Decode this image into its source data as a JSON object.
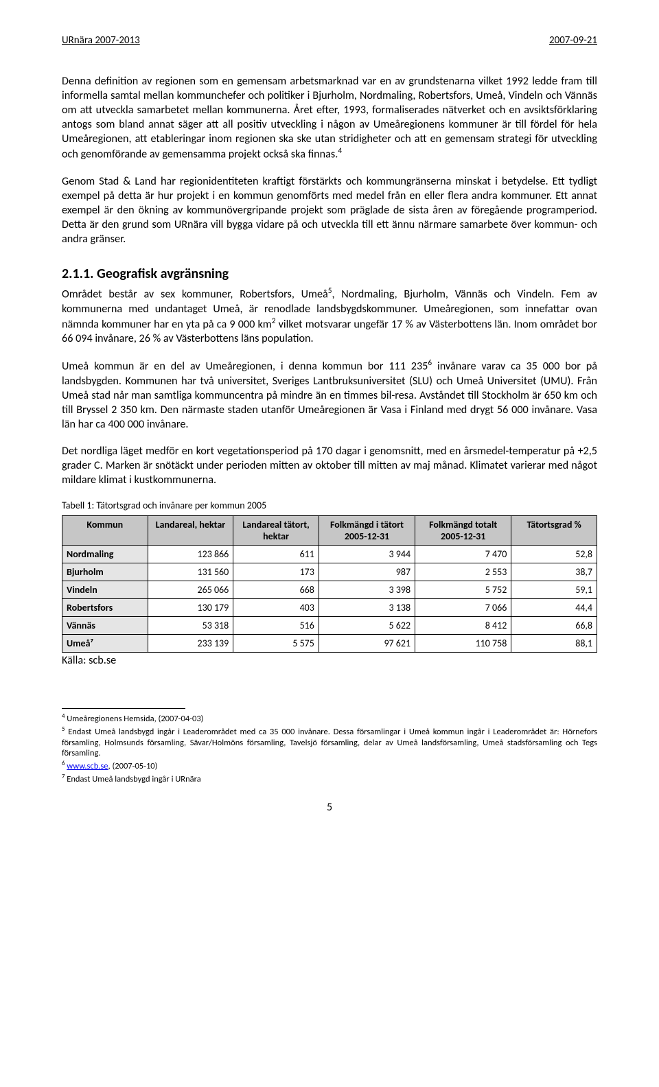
{
  "header": {
    "left": "URnära 2007-2013",
    "right": "2007-09-21"
  },
  "p1": "Denna definition av regionen som en gemensam arbetsmarknad var en av grundstenarna vilket 1992 ledde fram till informella samtal mellan kommunchefer och politiker i Bjurholm, Nordmaling, Robertsfors, Umeå, Vindeln och Vännäs om att utveckla samarbetet mellan kommunerna. Året efter, 1993, formaliserades nätverket och en avsiktsförklaring antogs som bland annat säger att all positiv utveckling i någon av Umeåregionens kommuner är till fördel för hela Umeåregionen, att etableringar inom regionen ska ske utan stridigheter och att en gemensam strategi för utveckling och genomförande av gemensamma projekt också ska finnas.",
  "p1_sup": "4",
  "p2": "Genom Stad & Land har regionidentiteten kraftigt förstärkts och kommungränserna minskat i betydelse. Ett tydligt exempel på detta är hur projekt i en kommun genomförts med medel från en eller flera andra kommuner. Ett annat exempel är den ökning av kommunövergripande projekt som präglade de sista åren av föregående programperiod. Detta är den grund som URnära vill bygga vidare på och utveckla till ett ännu närmare samarbete över kommun- och andra gränser.",
  "section_heading": "2.1.1. Geografisk avgränsning",
  "p3_a": "Området består av sex kommuner, Robertsfors, Umeå",
  "p3_sup1": "5",
  "p3_b": ", Nordmaling, Bjurholm, Vännäs och Vindeln. Fem av kommunerna med undantaget Umeå, är renodlade landsbygdskommuner. Umeåregionen, som innefattar ovan nämnda kommuner har en yta på ca 9 000 km",
  "p3_sup2": "2",
  "p3_c": " vilket motsvarar ungefär 17 % av Västerbottens län. Inom området bor 66 094 invånare, 26 % av Västerbottens läns population.",
  "p4_a": "Umeå kommun är en del av Umeåregionen, i denna kommun bor 111 235",
  "p4_sup": "6",
  "p4_b": " invånare varav ca 35 000 bor på landsbygden. Kommunen har två universitet, Sveriges Lantbruksuniversitet (SLU) och Umeå Universitet (UMU). Från Umeå stad når man samtliga kommuncentra på mindre än en timmes bil-resa. Avståndet till Stockholm är 650 km och till Bryssel 2 350 km. Den närmaste staden utanför Umeåregionen är Vasa i Finland med drygt 56 000 invånare. Vasa län har ca 400 000 invånare.",
  "p5": "Det nordliga läget medför en kort vegetationsperiod på 170 dagar i genomsnitt, med en årsmedel-temperatur på +2,5 grader C. Marken är snötäckt under perioden mitten av oktober till mitten av maj månad. Klimatet varierar med något mildare klimat i kustkommunerna.",
  "table_caption": "Tabell 1: Tätortsgrad och invånare per kommun 2005",
  "table": {
    "col_widths": [
      "16%",
      "16%",
      "16%",
      "18%",
      "18%",
      "16%"
    ],
    "columns": [
      "Kommun",
      "Landareal, hektar",
      "Landareal tätort, hektar",
      "Folkmängd i tätort 2005-12-31",
      "Folkmängd totalt 2005-12-31",
      "Tätortsgrad %"
    ],
    "rows": [
      [
        "Nordmaling",
        "123 866",
        "611",
        "3 944",
        "7 470",
        "52,8"
      ],
      [
        "Bjurholm",
        "131 560",
        "173",
        "987",
        "2 553",
        "38,7"
      ],
      [
        "Vindeln",
        "265 066",
        "668",
        "3 398",
        "5 752",
        "59,1"
      ],
      [
        "Robertsfors",
        "130 179",
        "403",
        "3 138",
        "7 066",
        "44,4"
      ],
      [
        "Vännäs",
        "53 318",
        "516",
        "5 622",
        "8 412",
        "66,8"
      ],
      [
        "Umeå⁷",
        "233 139",
        "5 575",
        "97 621",
        "110 758",
        "88,1"
      ]
    ]
  },
  "source_line": "Källa: scb.se",
  "footnotes": {
    "fn4": "Umeåregionens Hemsida, (2007-04-03)",
    "fn5": "Endast Umeå landsbygd ingår i Leaderområdet med ca 35 000 invånare. Dessa församlingar i Umeå kommun ingår i Leaderområdet är: Hörnefors församling, Holmsunds församling, Sävar/Holmöns församling, Tavelsjö församling, delar av Umeå landsförsamling, Umeå stadsförsamling och Tegs församling.",
    "fn6_link": "www.scb.se",
    "fn6_rest": ", (2007-05-10)",
    "fn7": "Endast Umeå landsbygd ingår i URnära"
  },
  "page_number": "5"
}
